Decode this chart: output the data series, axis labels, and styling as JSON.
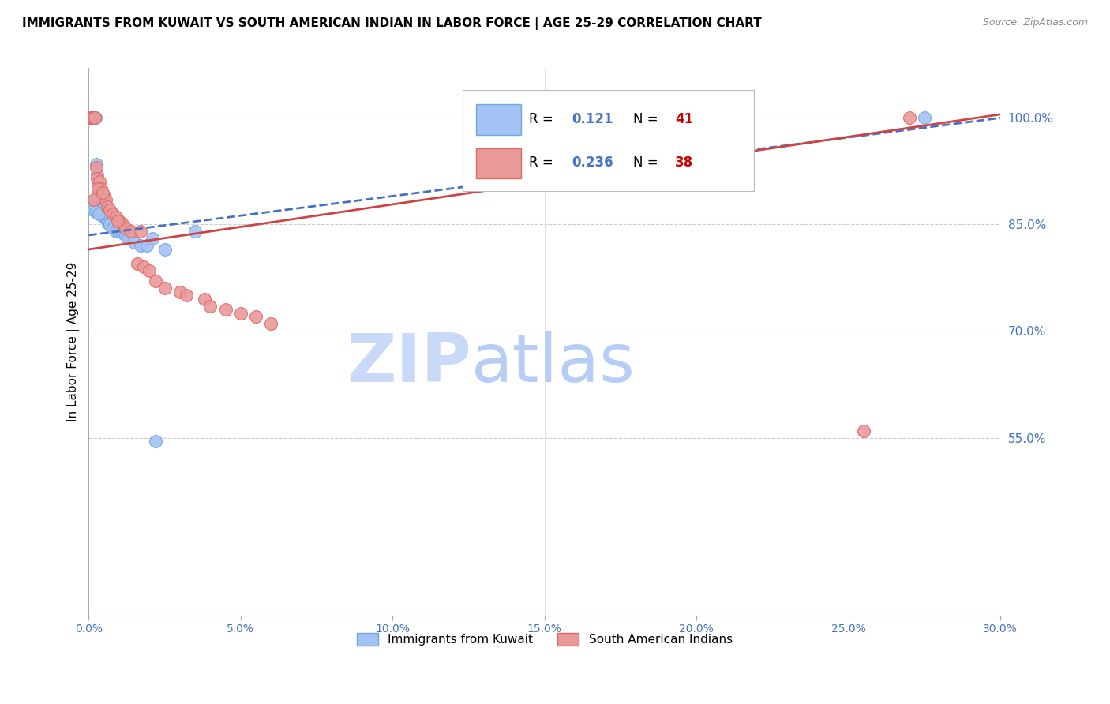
{
  "title": "IMMIGRANTS FROM KUWAIT VS SOUTH AMERICAN INDIAN IN LABOR FORCE | AGE 25-29 CORRELATION CHART",
  "source_text": "Source: ZipAtlas.com",
  "ylabel": "In Labor Force | Age 25-29",
  "xlim": [
    0.0,
    30.0
  ],
  "ylim": [
    30.0,
    107.0
  ],
  "x_ticks": [
    0.0,
    5.0,
    10.0,
    15.0,
    20.0,
    25.0,
    30.0
  ],
  "y_ticks_right": [
    55.0,
    70.0,
    85.0,
    100.0
  ],
  "blue_R": 0.121,
  "blue_N": 41,
  "pink_R": 0.236,
  "pink_N": 38,
  "blue_color": "#a4c2f4",
  "pink_color": "#ea9999",
  "blue_edge": "#6fa8dc",
  "pink_edge": "#e06666",
  "trend_blue_color": "#4472c4",
  "trend_pink_color": "#cc4444",
  "watermark_color": "#d6e4f7",
  "legend_r_color": "#4472c4",
  "legend_n_color": "#cc0000",
  "blue_scatter_x": [
    0.05,
    0.08,
    0.1,
    0.12,
    0.15,
    0.18,
    0.2,
    0.22,
    0.25,
    0.28,
    0.3,
    0.35,
    0.38,
    0.4,
    0.42,
    0.45,
    0.48,
    0.5,
    0.55,
    0.6,
    0.65,
    0.7,
    0.8,
    0.9,
    1.0,
    1.1,
    1.2,
    1.3,
    1.5,
    1.7,
    1.9,
    2.1,
    2.5,
    3.5,
    0.06,
    0.09,
    0.14,
    0.23,
    0.33,
    2.2,
    27.5
  ],
  "blue_scatter_y": [
    100.0,
    100.0,
    100.0,
    100.0,
    100.0,
    100.0,
    100.0,
    100.0,
    93.5,
    92.0,
    90.5,
    89.0,
    88.0,
    87.5,
    87.0,
    86.5,
    86.2,
    86.0,
    85.8,
    85.5,
    85.2,
    85.0,
    84.5,
    84.0,
    84.0,
    83.8,
    83.5,
    83.0,
    82.5,
    82.0,
    82.0,
    83.0,
    81.5,
    84.0,
    88.0,
    87.5,
    87.0,
    86.8,
    86.5,
    54.5,
    100.0
  ],
  "pink_scatter_x": [
    0.08,
    0.12,
    0.15,
    0.2,
    0.25,
    0.28,
    0.35,
    0.4,
    0.5,
    0.55,
    0.6,
    0.7,
    0.8,
    0.9,
    1.0,
    1.1,
    1.2,
    1.4,
    1.6,
    1.8,
    2.0,
    2.2,
    2.5,
    3.0,
    3.2,
    3.8,
    4.0,
    4.5,
    5.0,
    5.5,
    6.0,
    0.18,
    0.3,
    0.45,
    1.7,
    0.95,
    25.5,
    27.0
  ],
  "pink_scatter_y": [
    100.0,
    100.0,
    100.0,
    100.0,
    93.0,
    91.5,
    91.0,
    90.0,
    89.0,
    88.5,
    87.5,
    87.0,
    86.5,
    86.0,
    85.5,
    85.0,
    84.5,
    84.0,
    79.5,
    79.0,
    78.5,
    77.0,
    76.0,
    75.5,
    75.0,
    74.5,
    73.5,
    73.0,
    72.5,
    72.0,
    71.0,
    88.5,
    90.0,
    89.5,
    84.0,
    85.5,
    56.0,
    100.0
  ]
}
